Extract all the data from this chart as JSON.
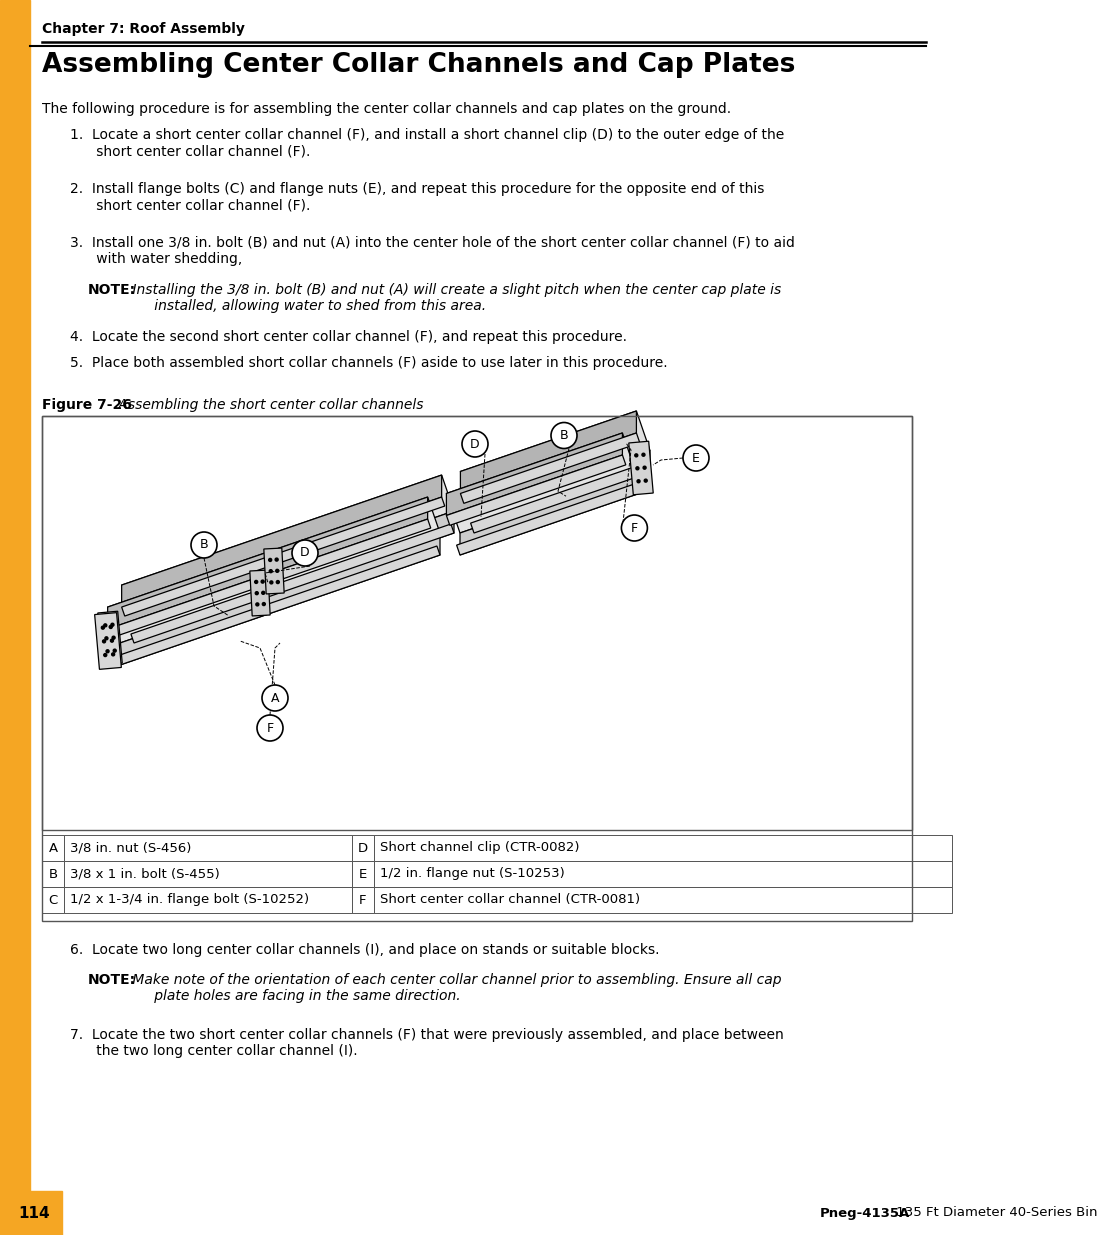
{
  "page_bg": "#ffffff",
  "orange_color": "#F5A623",
  "chapter_text": "Chapter 7: Roof Assembly",
  "title_text": "Assembling Center Collar Channels and Cap Plates",
  "intro_text": "The following procedure is for assembling the center collar channels and cap plates on the ground.",
  "step1": "1.  Locate a short center collar channel (F), and install a short channel clip (D) to the outer edge of the\n      short center collar channel (F).",
  "step2": "2.  Install flange bolts (C) and flange nuts (E), and repeat this procedure for the opposite end of this\n      short center collar channel (F).",
  "step3_a": "3.  Install one 3/8 in. bolt (B) and nut (A) into the center hole of the short center collar channel (F) to aid\n      with water shedding,",
  "note1_bold": "NOTE:",
  "note1_italic": " Installing the 3/8 in. bolt (B) and nut (A) will create a slight pitch when the center cap plate is\n      installed, allowing water to shed from this area.",
  "step4": "4.  Locate the second short center collar channel (F), and repeat this procedure.",
  "step5": "5.  Place both assembled short collar channels (F) aside to use later in this procedure.",
  "fig_bold": "Figure 7-26",
  "fig_italic": " Assembling the short center collar channels",
  "table_rows": [
    [
      "A",
      "3/8 in. nut (S-456)",
      "D",
      "Short channel clip (CTR-0082)"
    ],
    [
      "B",
      "3/8 x 1 in. bolt (S-455)",
      "E",
      "1/2 in. flange nut (S-10253)"
    ],
    [
      "C",
      "1/2 x 1-3/4 in. flange bolt (S-10252)",
      "F",
      "Short center collar channel (CTR-0081)"
    ]
  ],
  "step6": "6.  Locate two long center collar channels (I), and place on stands or suitable blocks.",
  "note2_bold": "NOTE:",
  "note2_italic": " Make note of the orientation of each center collar channel prior to assembling. Ensure all cap\n      plate holes are facing in the same direction.",
  "step7": "7.  Locate the two short center collar channels (F) that were previously assembled, and place between\n      the two long center collar channel (I).",
  "page_num": "114",
  "footer_bold": "Pneg-4135A",
  "footer_normal": " 135 Ft Diameter 40-Series Bin"
}
